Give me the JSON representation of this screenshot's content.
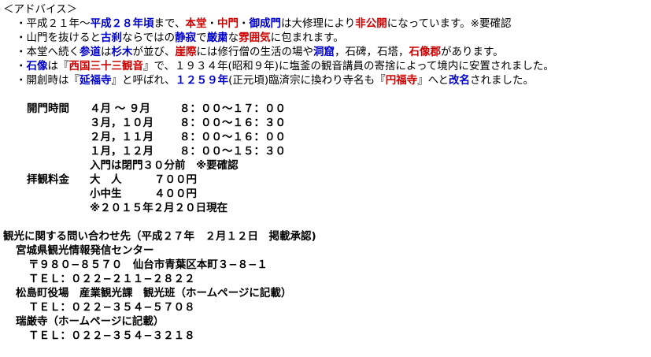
{
  "colors": {
    "blue": "#0000cc",
    "red": "#cc0000",
    "text": "#000000",
    "background": "#ffffff"
  },
  "advice": {
    "heading": "＜アドバイス＞",
    "lines": [
      [
        {
          "t": "・平成２１年〜",
          "c": "n"
        },
        {
          "t": "平成２８年頃",
          "c": "blue"
        },
        {
          "t": "まで、",
          "c": "n"
        },
        {
          "t": "本堂",
          "c": "red"
        },
        {
          "t": "・",
          "c": "n"
        },
        {
          "t": "中門",
          "c": "red"
        },
        {
          "t": "・",
          "c": "n"
        },
        {
          "t": "御成門",
          "c": "blue"
        },
        {
          "t": "は大修理により",
          "c": "n"
        },
        {
          "t": "非公開",
          "c": "red"
        },
        {
          "t": "になっています。※要確認",
          "c": "n"
        }
      ],
      [
        {
          "t": "・山門を抜けると",
          "c": "n"
        },
        {
          "t": "古刹",
          "c": "blue"
        },
        {
          "t": "ならではの",
          "c": "n"
        },
        {
          "t": "静寂",
          "c": "blue"
        },
        {
          "t": "で",
          "c": "n"
        },
        {
          "t": "厳粛",
          "c": "blue"
        },
        {
          "t": "な",
          "c": "n"
        },
        {
          "t": "雰囲気",
          "c": "red"
        },
        {
          "t": "に包まれます。",
          "c": "n"
        }
      ],
      [
        {
          "t": "・本堂へ続く",
          "c": "n"
        },
        {
          "t": "参道",
          "c": "blue"
        },
        {
          "t": "は",
          "c": "n"
        },
        {
          "t": "杉木",
          "c": "blue"
        },
        {
          "t": "が並び、",
          "c": "n"
        },
        {
          "t": "崖際",
          "c": "red"
        },
        {
          "t": "には修行僧の生活の場や",
          "c": "n"
        },
        {
          "t": "洞窟",
          "c": "blue"
        },
        {
          "t": "，石碑，石塔，",
          "c": "n"
        },
        {
          "t": "石像郡",
          "c": "red"
        },
        {
          "t": "があります。",
          "c": "n"
        }
      ],
      [
        {
          "t": "・",
          "c": "n"
        },
        {
          "t": "石像",
          "c": "blue"
        },
        {
          "t": "は『",
          "c": "n"
        },
        {
          "t": "西国三十三観音",
          "c": "red"
        },
        {
          "t": "』で、１９３４年(昭和９年)に塩釜の観音講員の寄捨によって境内に安置されました。",
          "c": "n"
        }
      ],
      [
        {
          "t": "・開創時は『",
          "c": "n"
        },
        {
          "t": "延福寺",
          "c": "blue"
        },
        {
          "t": "』と呼ばれ、",
          "c": "n"
        },
        {
          "t": "１２５９年",
          "c": "blue"
        },
        {
          "t": "(正元頃)臨済宗に換わり寺名も『",
          "c": "n"
        },
        {
          "t": "円福寺",
          "c": "red"
        },
        {
          "t": "』へと",
          "c": "n"
        },
        {
          "t": "改名",
          "c": "blue"
        },
        {
          "t": "されました。",
          "c": "n"
        }
      ]
    ]
  },
  "hours": {
    "label": "開門時間",
    "rows": [
      {
        "month": "４月 〜 ９月",
        "time": "８：００〜１７：００"
      },
      {
        "month": "３月，１０月",
        "time": "８：００〜１６：３０"
      },
      {
        "month": "２月，１１月",
        "time": "８：００〜１６：００"
      },
      {
        "month": "１月，１２月",
        "time": "８：００〜１５：３０"
      }
    ],
    "note": "入門は閉門３０分前　※要確認"
  },
  "fees": {
    "label": "拝観料金",
    "rows": [
      {
        "type": "大　人",
        "price": "７００円"
      },
      {
        "type": "小中生",
        "price": "４００円"
      }
    ],
    "note": "※２０１５年２月２０日現在"
  },
  "contact": {
    "heading": "観光に関する問い合わせ先（平成２７年　２月１２日　掲載承認)",
    "org1_name": "宮城県観光情報発信センター",
    "org1_address": "〒９８０−８５７０　仙台市青葉区本町３−８−１",
    "org1_tel": "ＴＥＬ：０２２−２１１−２８２２",
    "org2_name": "松島町役場　産業観光課　観光班（ホームページに記載）",
    "org2_tel": "ＴＥＬ：０２２−３５４−５７０８",
    "org3_name": "瑞厳寺（ホームページに記載）",
    "org3_tel": "ＴＥＬ：０２２−３５４−３２１８"
  }
}
